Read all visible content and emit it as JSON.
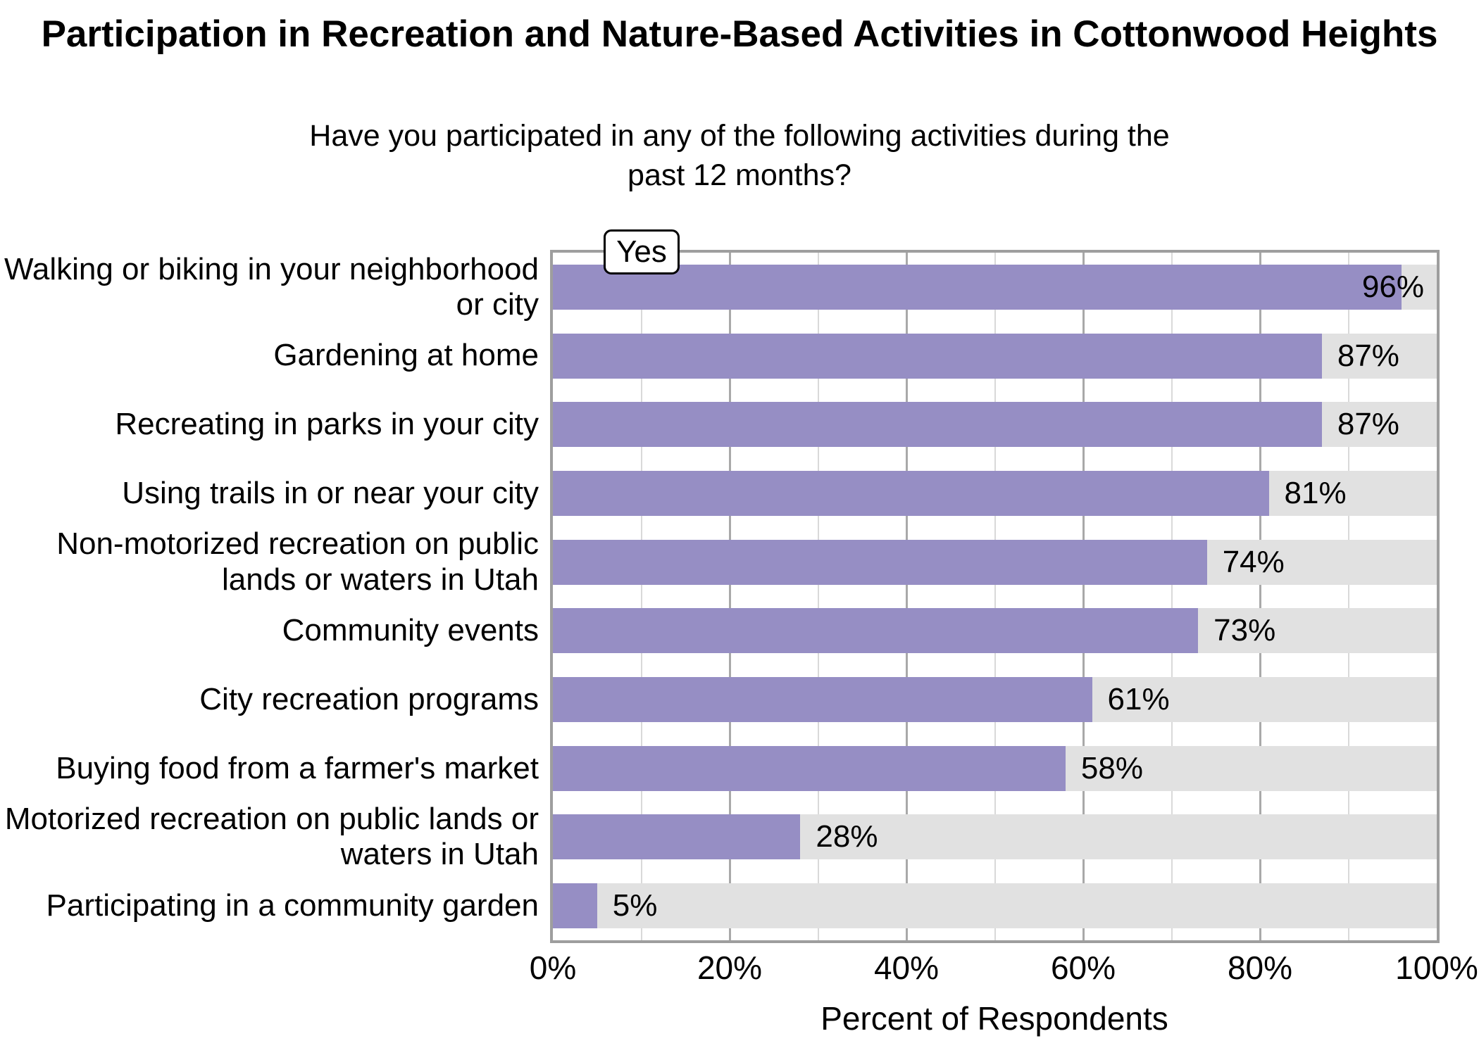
{
  "title": "Participation in Recreation and Nature-Based Activities in Cottonwood Heights",
  "subtitle": "Have you participated in any of the following activities during the past 12 months?",
  "legend": {
    "label": "Yes"
  },
  "x_axis": {
    "title": "Percent of Respondents",
    "ticks": [
      "0%",
      "20%",
      "40%",
      "60%",
      "80%",
      "100%"
    ]
  },
  "chart_data": {
    "type": "bar",
    "orientation": "horizontal",
    "title": "Participation in Recreation and Nature-Based Activities in Cottonwood Heights",
    "subtitle": "Have you participated in any of the following activities during the past 12 months?",
    "xlabel": "Percent of Respondents",
    "ylabel": "",
    "xlim": [
      0,
      100
    ],
    "legend_entries": [
      "Yes"
    ],
    "legend_position": "top-left-inside",
    "grid": {
      "minor_pct": [
        10,
        30,
        50,
        70,
        90
      ],
      "major_pct": [
        20,
        40,
        60,
        80
      ]
    },
    "categories": [
      "Walking or biking in your neighborhood or city",
      "Gardening at home",
      "Recreating in parks in your city",
      "Using trails in or near your city",
      "Non-motorized recreation on public lands or waters in Utah",
      "Community events",
      "City recreation programs",
      "Buying food from a farmer's market",
      "Motorized recreation on public lands or waters in Utah",
      "Participating in a community garden"
    ],
    "values": [
      96,
      87,
      87,
      81,
      74,
      73,
      61,
      58,
      28,
      5
    ],
    "value_labels": [
      "96%",
      "87%",
      "87%",
      "81%",
      "74%",
      "73%",
      "61%",
      "58%",
      "28%",
      "5%"
    ],
    "colors": {
      "bar": "#968ec4",
      "track": "#e1e1e1",
      "panel_border": "#9e9e9e",
      "grid_minor": "#d9d9d9",
      "grid_major": "#a9a9a9",
      "text": "#000000",
      "background": "#ffffff"
    }
  }
}
